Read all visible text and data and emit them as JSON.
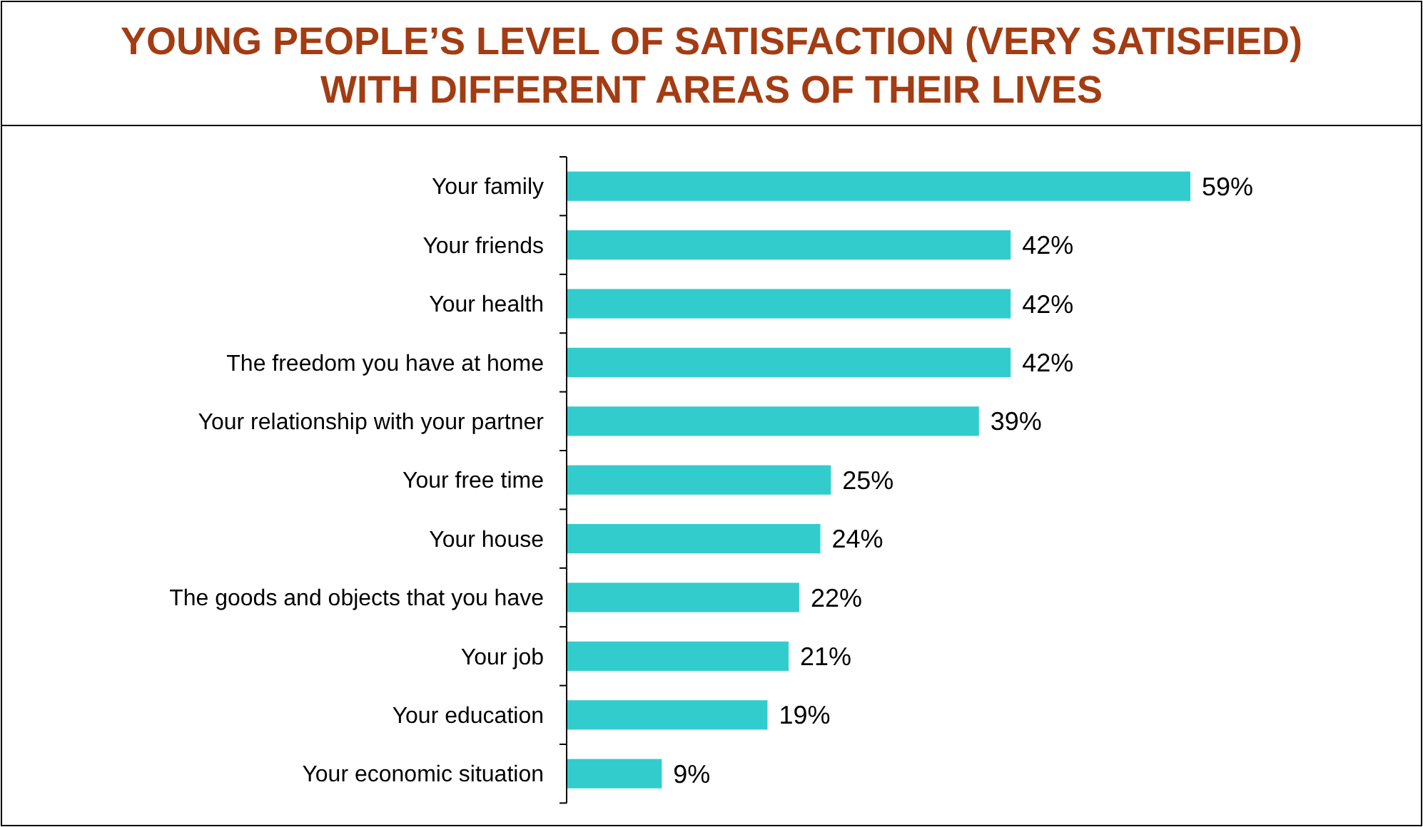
{
  "chart_data": {
    "type": "bar",
    "orientation": "horizontal",
    "title": "YOUNG PEOPLE’S LEVEL OF SATISFACTION (VERY SATISFIED) WITH DIFFERENT AREAS OF THEIR LIVES",
    "categories": [
      "Your family",
      "Your friends",
      "Your health",
      "The freedom you have at home",
      "Your relationship with your partner",
      "Your free time",
      "Your house",
      "The goods and objects that you have",
      "Your job",
      "Your education",
      "Your economic situation"
    ],
    "values": [
      59,
      42,
      42,
      42,
      39,
      25,
      24,
      22,
      21,
      19,
      9
    ],
    "value_labels": [
      "59%",
      "42%",
      "42%",
      "42%",
      "39%",
      "25%",
      "24%",
      "22%",
      "21%",
      "19%",
      "9%"
    ],
    "color": "#33cccc"
  }
}
